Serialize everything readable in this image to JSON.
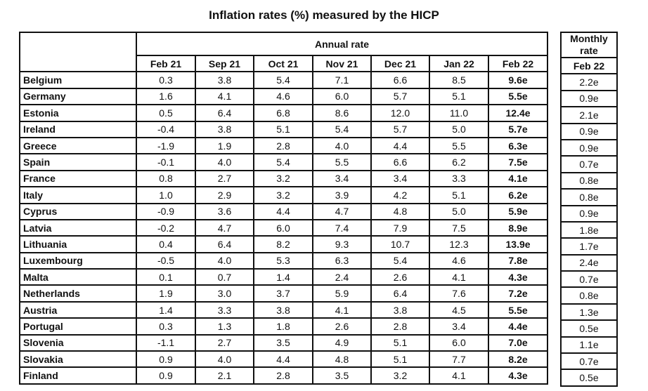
{
  "title": "Inflation rates (%) measured by the HICP",
  "annual_header": "Annual rate",
  "monthly_header": "Monthly rate",
  "columns": [
    "Feb 21",
    "Sep 21",
    "Oct 21",
    "Nov 21",
    "Dec 21",
    "Jan 22",
    "Feb 22"
  ],
  "monthly_column": "Feb 22",
  "rows": [
    {
      "country": "Belgium",
      "values": [
        "0.3",
        "3.8",
        "5.4",
        "7.1",
        "6.6",
        "8.5",
        "9.6e"
      ],
      "monthly": "2.2e"
    },
    {
      "country": "Germany",
      "values": [
        "1.6",
        "4.1",
        "4.6",
        "6.0",
        "5.7",
        "5.1",
        "5.5e"
      ],
      "monthly": "0.9e"
    },
    {
      "country": "Estonia",
      "values": [
        "0.5",
        "6.4",
        "6.8",
        "8.6",
        "12.0",
        "11.0",
        "12.4e"
      ],
      "monthly": "2.1e"
    },
    {
      "country": "Ireland",
      "values": [
        "-0.4",
        "3.8",
        "5.1",
        "5.4",
        "5.7",
        "5.0",
        "5.7e"
      ],
      "monthly": "0.9e"
    },
    {
      "country": "Greece",
      "values": [
        "-1.9",
        "1.9",
        "2.8",
        "4.0",
        "4.4",
        "5.5",
        "6.3e"
      ],
      "monthly": "0.9e"
    },
    {
      "country": "Spain",
      "values": [
        "-0.1",
        "4.0",
        "5.4",
        "5.5",
        "6.6",
        "6.2",
        "7.5e"
      ],
      "monthly": "0.7e"
    },
    {
      "country": "France",
      "values": [
        "0.8",
        "2.7",
        "3.2",
        "3.4",
        "3.4",
        "3.3",
        "4.1e"
      ],
      "monthly": "0.8e"
    },
    {
      "country": "Italy",
      "values": [
        "1.0",
        "2.9",
        "3.2",
        "3.9",
        "4.2",
        "5.1",
        "6.2e"
      ],
      "monthly": "0.8e"
    },
    {
      "country": "Cyprus",
      "values": [
        "-0.9",
        "3.6",
        "4.4",
        "4.7",
        "4.8",
        "5.0",
        "5.9e"
      ],
      "monthly": "0.9e"
    },
    {
      "country": "Latvia",
      "values": [
        "-0.2",
        "4.7",
        "6.0",
        "7.4",
        "7.9",
        "7.5",
        "8.9e"
      ],
      "monthly": "1.8e"
    },
    {
      "country": "Lithuania",
      "values": [
        "0.4",
        "6.4",
        "8.2",
        "9.3",
        "10.7",
        "12.3",
        "13.9e"
      ],
      "monthly": "1.7e"
    },
    {
      "country": "Luxembourg",
      "values": [
        "-0.5",
        "4.0",
        "5.3",
        "6.3",
        "5.4",
        "4.6",
        "7.8e"
      ],
      "monthly": "2.4e"
    },
    {
      "country": "Malta",
      "values": [
        "0.1",
        "0.7",
        "1.4",
        "2.4",
        "2.6",
        "4.1",
        "4.3e"
      ],
      "monthly": "0.7e"
    },
    {
      "country": "Netherlands",
      "values": [
        "1.9",
        "3.0",
        "3.7",
        "5.9",
        "6.4",
        "7.6",
        "7.2e"
      ],
      "monthly": "0.8e"
    },
    {
      "country": "Austria",
      "values": [
        "1.4",
        "3.3",
        "3.8",
        "4.1",
        "3.8",
        "4.5",
        "5.5e"
      ],
      "monthly": "1.3e"
    },
    {
      "country": "Portugal",
      "values": [
        "0.3",
        "1.3",
        "1.8",
        "2.6",
        "2.8",
        "3.4",
        "4.4e"
      ],
      "monthly": "0.5e"
    },
    {
      "country": "Slovenia",
      "values": [
        "-1.1",
        "2.7",
        "3.5",
        "4.9",
        "5.1",
        "6.0",
        "7.0e"
      ],
      "monthly": "1.1e"
    },
    {
      "country": "Slovakia",
      "values": [
        "0.9",
        "4.0",
        "4.4",
        "4.8",
        "5.1",
        "7.7",
        "8.2e"
      ],
      "monthly": "0.7e"
    },
    {
      "country": "Finland",
      "values": [
        "0.9",
        "2.1",
        "2.8",
        "3.5",
        "3.2",
        "4.1",
        "4.3e"
      ],
      "monthly": "0.5e"
    }
  ]
}
